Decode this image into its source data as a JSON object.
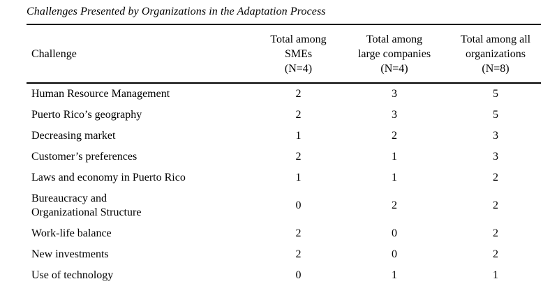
{
  "title": "Challenges Presented by Organizations in the Adaptation Process",
  "table": {
    "columns": [
      {
        "label": "Challenge"
      },
      {
        "label": "Total among\nSMEs\n(N=4)"
      },
      {
        "label": "Total among\nlarge companies\n(N=4)"
      },
      {
        "label": "Total among all\norganizations\n(N=8)"
      }
    ],
    "rows": [
      {
        "challenge": "Human Resource Management",
        "smes": "2",
        "large": "3",
        "all": "5"
      },
      {
        "challenge": "Puerto Rico’s geography",
        "smes": "2",
        "large": "3",
        "all": "5"
      },
      {
        "challenge": "Decreasing market",
        "smes": "1",
        "large": "2",
        "all": "3"
      },
      {
        "challenge": "Customer’s preferences",
        "smes": "2",
        "large": "1",
        "all": "3"
      },
      {
        "challenge": "Laws and economy in Puerto Rico",
        "smes": "1",
        "large": "1",
        "all": "2"
      },
      {
        "challenge": "Bureaucracy and\nOrganizational Structure",
        "smes": "0",
        "large": "2",
        "all": "2"
      },
      {
        "challenge": "Work-life balance",
        "smes": "2",
        "large": "0",
        "all": "2"
      },
      {
        "challenge": "New investments",
        "smes": "2",
        "large": "0",
        "all": "2"
      },
      {
        "challenge": "Use of technology",
        "smes": "0",
        "large": "1",
        "all": "1"
      }
    ]
  }
}
